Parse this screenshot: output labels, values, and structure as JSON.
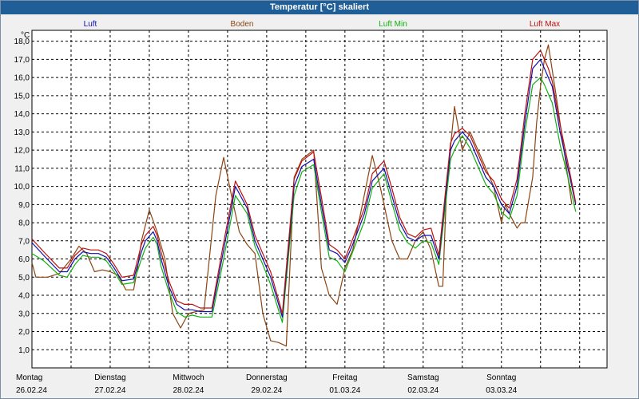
{
  "window": {
    "title": "Temperatur [°C] skaliert"
  },
  "chart_data": {
    "type": "line",
    "title": "Temperatur [°C] skaliert",
    "ylabel": "°C",
    "ylim": [
      0,
      18.6
    ],
    "y_ticks": [
      "18,0",
      "17,0",
      "16,0",
      "15,0",
      "14,0",
      "13,0",
      "12,0",
      "11,0",
      "10,0",
      "9,0",
      "8,0",
      "7,0",
      "6,0",
      "5,0",
      "4,0",
      "3,0",
      "2,0",
      "1,0"
    ],
    "y_tick_values": [
      18,
      17,
      16,
      15,
      14,
      13,
      12,
      11,
      10,
      9,
      8,
      7,
      6,
      5,
      4,
      3,
      2,
      1
    ],
    "x_range": [
      0,
      7.35
    ],
    "grid": true,
    "x_labels": [
      {
        "day": "Montag",
        "date": "26.02.24",
        "x": 0
      },
      {
        "day": "Dienstag",
        "date": "27.02.24",
        "x": 1
      },
      {
        "day": "Mittwoch",
        "date": "28.02.24",
        "x": 2
      },
      {
        "day": "Donnerstag",
        "date": "29.02.24",
        "x": 3
      },
      {
        "day": "Freitag",
        "date": "01.03.24",
        "x": 4
      },
      {
        "day": "Samstag",
        "date": "02.03.24",
        "x": 5
      },
      {
        "day": "Sonntag",
        "date": "03.03.24",
        "x": 6
      }
    ],
    "series": [
      {
        "name": "Luft",
        "color": "#1010b0",
        "x": [
          0,
          0.15,
          0.35,
          0.45,
          0.55,
          0.65,
          0.75,
          0.85,
          0.95,
          1.05,
          1.15,
          1.3,
          1.4,
          1.45,
          1.55,
          1.6,
          1.65,
          1.75,
          1.85,
          1.95,
          2.05,
          2.15,
          2.3,
          2.45,
          2.6,
          2.75,
          2.85,
          2.95,
          3.05,
          3.2,
          3.35,
          3.45,
          3.6,
          3.7,
          3.8,
          3.9,
          4.0,
          4.1,
          4.25,
          4.35,
          4.5,
          4.6,
          4.7,
          4.8,
          4.9,
          5.0,
          5.1,
          5.2,
          5.35,
          5.4,
          5.5,
          5.6,
          5.7,
          5.8,
          5.9,
          6.0,
          6.1,
          6.2,
          6.3,
          6.4,
          6.5,
          6.55,
          6.6,
          6.65,
          6.75,
          6.85,
          6.95
        ],
        "y": [
          6.9,
          6.2,
          5.3,
          5.3,
          6.0,
          6.4,
          6.3,
          6.3,
          6.1,
          5.5,
          4.8,
          4.9,
          6.4,
          7.0,
          7.5,
          7.0,
          6.0,
          4.5,
          3.5,
          3.2,
          3.2,
          3.1,
          3.1,
          6.5,
          10.0,
          8.8,
          7.0,
          6.0,
          5.0,
          2.8,
          10.0,
          11.1,
          11.5,
          9.0,
          6.5,
          6.3,
          5.8,
          6.8,
          8.5,
          10.3,
          11.0,
          9.5,
          8.0,
          7.2,
          7.0,
          7.3,
          7.3,
          6.0,
          12.0,
          12.5,
          13.0,
          12.5,
          11.5,
          10.5,
          10.0,
          9.0,
          8.5,
          10.0,
          13.5,
          16.5,
          17.0,
          16.5,
          16.0,
          15.5,
          13.0,
          11.0,
          9.0
        ]
      },
      {
        "name": "Boden",
        "color": "#8b4513",
        "x": [
          0,
          0.05,
          0.2,
          0.35,
          0.5,
          0.6,
          0.7,
          0.75,
          0.8,
          0.9,
          1.0,
          1.1,
          1.2,
          1.3,
          1.35,
          1.4,
          1.5,
          1.6,
          1.7,
          1.8,
          1.9,
          2.0,
          2.1,
          2.2,
          2.35,
          2.45,
          2.55,
          2.65,
          2.75,
          2.85,
          2.95,
          3.05,
          3.15,
          3.25,
          3.35,
          3.45,
          3.6,
          3.7,
          3.8,
          3.9,
          4.0,
          4.1,
          4.2,
          4.35,
          4.45,
          4.6,
          4.7,
          4.8,
          4.9,
          5.0,
          5.1,
          5.2,
          5.25,
          5.3,
          5.4,
          5.5,
          5.55,
          5.6,
          5.7,
          5.8,
          5.9,
          6.0,
          6.05,
          6.1,
          6.2,
          6.25,
          6.3,
          6.4,
          6.45,
          6.5,
          6.55,
          6.6,
          6.7,
          6.8,
          6.9
        ],
        "y": [
          5.8,
          5.0,
          5.0,
          5.2,
          6.0,
          6.7,
          6.3,
          5.8,
          5.3,
          5.4,
          5.3,
          5.1,
          4.3,
          4.3,
          5.5,
          7.0,
          8.7,
          7.5,
          6.0,
          3.0,
          2.2,
          3.0,
          3.1,
          3.2,
          9.5,
          11.6,
          9.5,
          7.5,
          6.8,
          6.3,
          3.0,
          1.5,
          1.4,
          1.2,
          10.5,
          11.5,
          12.0,
          5.5,
          4.0,
          3.5,
          5.5,
          6.5,
          8.5,
          11.7,
          10.0,
          7.0,
          6.0,
          6.0,
          7.0,
          7.5,
          6.5,
          4.5,
          4.5,
          10.0,
          14.4,
          12.0,
          12.5,
          13.0,
          12.0,
          11.0,
          10.0,
          8.0,
          9.0,
          8.5,
          7.7,
          8.0,
          8.0,
          10.5,
          13.5,
          15.5,
          17.0,
          17.8,
          15.0,
          12.0,
          9.0
        ]
      },
      {
        "name": "Luft Min",
        "color": "#10b010",
        "x": [
          0,
          0.15,
          0.35,
          0.45,
          0.55,
          0.65,
          0.75,
          0.85,
          0.95,
          1.05,
          1.15,
          1.3,
          1.4,
          1.45,
          1.55,
          1.6,
          1.65,
          1.75,
          1.85,
          1.95,
          2.05,
          2.15,
          2.3,
          2.45,
          2.6,
          2.75,
          2.85,
          2.95,
          3.05,
          3.2,
          3.35,
          3.45,
          3.6,
          3.7,
          3.8,
          3.9,
          4.0,
          4.1,
          4.25,
          4.35,
          4.5,
          4.6,
          4.7,
          4.8,
          4.9,
          5.0,
          5.1,
          5.2,
          5.35,
          5.4,
          5.5,
          5.6,
          5.7,
          5.8,
          5.9,
          6.0,
          6.1,
          6.2,
          6.3,
          6.4,
          6.5,
          6.55,
          6.6,
          6.65,
          6.75,
          6.85,
          6.95
        ],
        "y": [
          6.3,
          5.9,
          5.1,
          5.0,
          5.7,
          6.2,
          6.1,
          6.1,
          5.9,
          5.3,
          4.6,
          4.7,
          6.0,
          6.6,
          7.2,
          6.8,
          5.6,
          4.2,
          3.1,
          2.8,
          2.9,
          2.8,
          2.8,
          6.0,
          9.5,
          8.5,
          6.7,
          5.7,
          4.6,
          2.5,
          9.5,
          10.8,
          11.2,
          8.6,
          6.1,
          5.9,
          5.3,
          6.4,
          8.1,
          9.9,
          10.7,
          9.1,
          7.6,
          6.9,
          6.6,
          7.0,
          6.9,
          5.7,
          11.5,
          12.0,
          12.8,
          12.1,
          11.1,
          10.1,
          9.6,
          8.6,
          8.2,
          9.5,
          13.0,
          15.6,
          16.0,
          15.6,
          15.1,
          14.6,
          12.3,
          10.5,
          8.6
        ]
      },
      {
        "name": "Luft Max",
        "color": "#c01010",
        "x": [
          0,
          0.15,
          0.35,
          0.45,
          0.55,
          0.65,
          0.75,
          0.85,
          0.95,
          1.05,
          1.15,
          1.3,
          1.4,
          1.45,
          1.55,
          1.6,
          1.65,
          1.75,
          1.85,
          1.95,
          2.05,
          2.15,
          2.3,
          2.45,
          2.6,
          2.75,
          2.85,
          2.95,
          3.05,
          3.2,
          3.35,
          3.45,
          3.6,
          3.7,
          3.8,
          3.9,
          4.0,
          4.1,
          4.25,
          4.35,
          4.5,
          4.6,
          4.7,
          4.8,
          4.9,
          5.0,
          5.1,
          5.2,
          5.35,
          5.4,
          5.5,
          5.6,
          5.7,
          5.8,
          5.9,
          6.0,
          6.1,
          6.2,
          6.3,
          6.4,
          6.5,
          6.55,
          6.6,
          6.65,
          6.75,
          6.85,
          6.95
        ],
        "y": [
          7.1,
          6.4,
          5.5,
          5.5,
          6.2,
          6.6,
          6.5,
          6.5,
          6.3,
          5.7,
          5.0,
          5.1,
          6.8,
          7.3,
          7.8,
          7.3,
          6.4,
          4.8,
          3.7,
          3.5,
          3.5,
          3.3,
          3.3,
          6.9,
          10.3,
          9.0,
          7.3,
          6.3,
          5.3,
          3.0,
          10.4,
          11.4,
          11.9,
          9.4,
          6.8,
          6.5,
          6.0,
          7.1,
          8.8,
          10.7,
          11.4,
          9.9,
          8.3,
          7.4,
          7.2,
          7.6,
          7.7,
          6.2,
          12.4,
          12.9,
          13.2,
          12.8,
          11.8,
          10.8,
          10.3,
          9.3,
          8.8,
          10.4,
          14.0,
          17.0,
          17.5,
          17.0,
          16.5,
          15.8,
          13.4,
          11.3,
          9.1
        ]
      }
    ]
  }
}
